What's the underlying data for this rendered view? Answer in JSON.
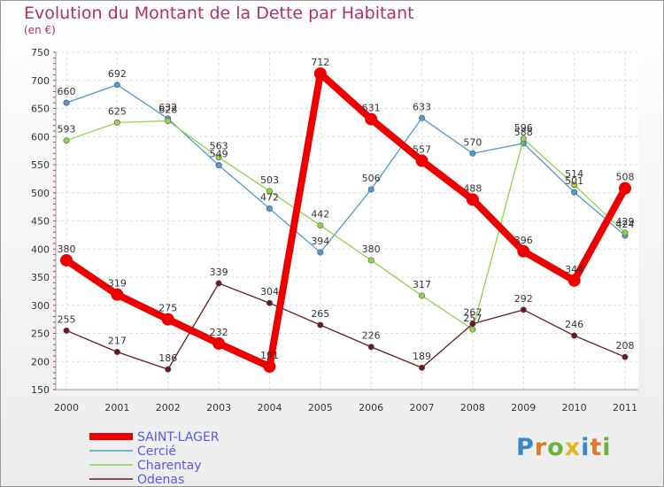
{
  "chart_data": {
    "type": "line",
    "title": "Evolution du Montant de la Dette par Habitant",
    "subtitle": "(en €)",
    "xlabel": "",
    "ylabel": "",
    "ylim": [
      150,
      750
    ],
    "yticks": [
      150,
      200,
      250,
      300,
      350,
      400,
      450,
      500,
      550,
      600,
      650,
      700,
      750
    ],
    "grid": true,
    "categories": [
      "2000",
      "2001",
      "2002",
      "2003",
      "2004",
      "2005",
      "2006",
      "2007",
      "2008",
      "2009",
      "2010",
      "2011"
    ],
    "series": [
      {
        "name": "SAINT-LAGER",
        "color": "#ee0000",
        "values": [
          380,
          319,
          275,
          232,
          191,
          712,
          631,
          557,
          488,
          396,
          344,
          508
        ]
      },
      {
        "name": "Cercié",
        "color": "#4e9ad2",
        "values": [
          660,
          692,
          632,
          549,
          472,
          394,
          506,
          633,
          570,
          588,
          501,
          424
        ]
      },
      {
        "name": "Charentay",
        "color": "#8fd44a",
        "values": [
          593,
          625,
          628,
          563,
          503,
          442,
          380,
          317,
          257,
          596,
          514,
          429
        ]
      },
      {
        "name": "Odenas",
        "color": "#6a1a1e",
        "values": [
          255,
          217,
          186,
          339,
          304,
          265,
          226,
          189,
          267,
          292,
          246,
          208
        ]
      }
    ]
  },
  "legend_text_color": "#5a5ae6",
  "brand": {
    "logo_letters": [
      "P",
      "r",
      "o",
      "x",
      "i",
      "t",
      "i"
    ]
  }
}
